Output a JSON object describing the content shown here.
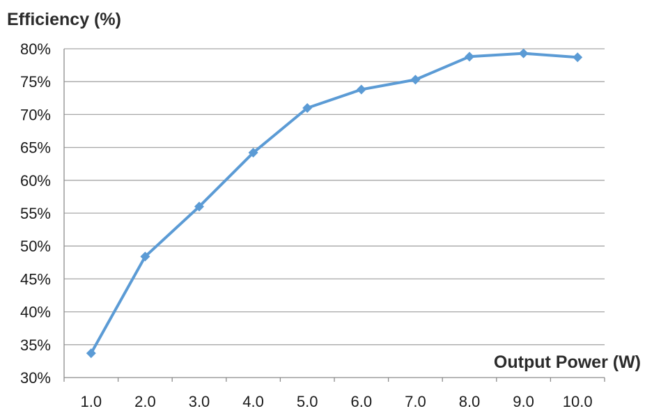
{
  "chart_data": {
    "type": "line",
    "ylabel": "Efficiency (%)",
    "xlabel": "Output Power (W)",
    "categories": [
      "1.0",
      "2.0",
      "3.0",
      "4.0",
      "5.0",
      "6.0",
      "7.0",
      "8.0",
      "9.0",
      "10.0"
    ],
    "series": [
      {
        "values": [
          33.7,
          48.4,
          56.0,
          64.2,
          71.0,
          73.8,
          75.3,
          78.8,
          79.3,
          78.7
        ]
      }
    ],
    "ylim": [
      30,
      80
    ],
    "yticks": [
      30,
      35,
      40,
      45,
      50,
      55,
      60,
      65,
      70,
      75,
      80
    ],
    "ytick_labels": [
      "30%",
      "35%",
      "40%",
      "45%",
      "50%",
      "55%",
      "60%",
      "65%",
      "70%",
      "75%",
      "80%"
    ],
    "grid": true,
    "marker": "diamond",
    "colors": {
      "series": "#5b9bd5",
      "grid": "#a6a6a6"
    }
  }
}
